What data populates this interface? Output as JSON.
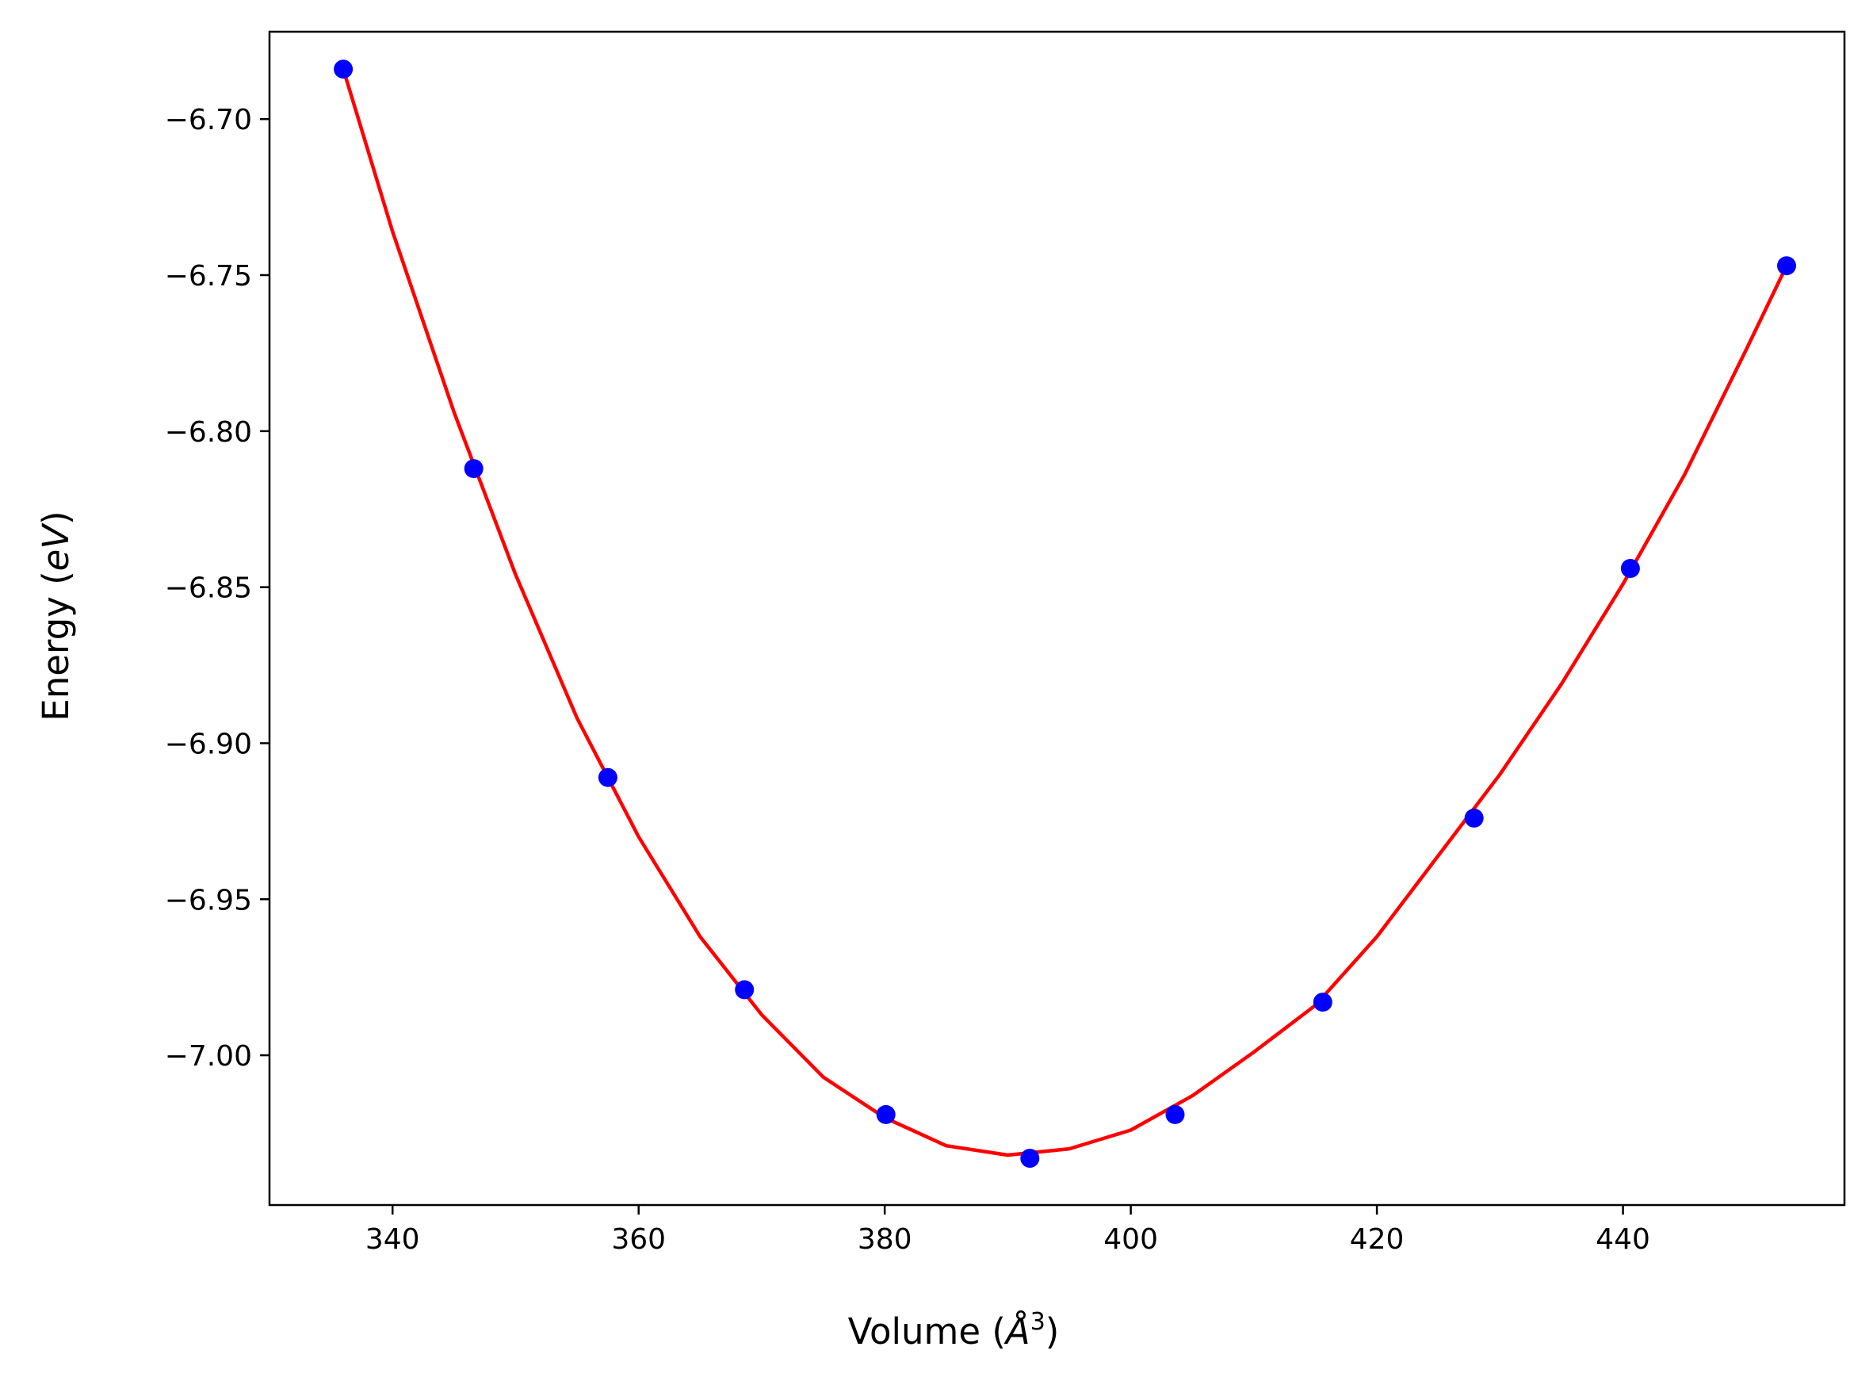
{
  "chart_data": {
    "type": "scatter",
    "title": "",
    "xlabel": {
      "prefix": "Volume (",
      "symbol": "Å",
      "superscript": "3",
      "suffix": ")"
    },
    "ylabel": {
      "prefix": "Energy (",
      "unit": "eV",
      "suffix": ")"
    },
    "xlim": [
      330,
      458
    ],
    "ylim": [
      -7.048,
      -6.672
    ],
    "xticks": [
      340,
      360,
      380,
      400,
      420,
      440
    ],
    "xtick_labels": [
      "340",
      "360",
      "380",
      "400",
      "420",
      "440"
    ],
    "yticks": [
      -6.7,
      -6.75,
      -6.8,
      -6.85,
      -6.9,
      -6.95,
      -7.0
    ],
    "ytick_labels": [
      "−6.70",
      "−6.75",
      "−6.80",
      "−6.85",
      "−6.90",
      "−6.95",
      "−7.00"
    ],
    "grid": false,
    "series": [
      {
        "kind": "points",
        "color": "#0000ff",
        "x": [
          336.0,
          346.6,
          357.5,
          368.6,
          380.1,
          391.8,
          403.6,
          415.6,
          427.9,
          440.6,
          453.3
        ],
        "y": [
          -6.684,
          -6.812,
          -6.911,
          -6.979,
          -7.019,
          -7.033,
          -7.019,
          -6.983,
          -6.924,
          -6.844,
          -6.747
        ]
      },
      {
        "kind": "fit-curve",
        "color": "#ff0000",
        "x": [
          336.0,
          340,
          345,
          350,
          355,
          360,
          365,
          370,
          375,
          380,
          385,
          390,
          395,
          400,
          405,
          410,
          415,
          420,
          425,
          430,
          435,
          440,
          445,
          450,
          453.3
        ],
        "y": [
          -6.684,
          -6.736,
          -6.794,
          -6.846,
          -6.892,
          -6.93,
          -6.962,
          -6.987,
          -7.007,
          -7.02,
          -7.029,
          -7.032,
          -7.03,
          -7.024,
          -7.013,
          -6.999,
          -6.984,
          -6.962,
          -6.936,
          -6.91,
          -6.881,
          -6.849,
          -6.814,
          -6.774,
          -6.747
        ]
      }
    ]
  }
}
